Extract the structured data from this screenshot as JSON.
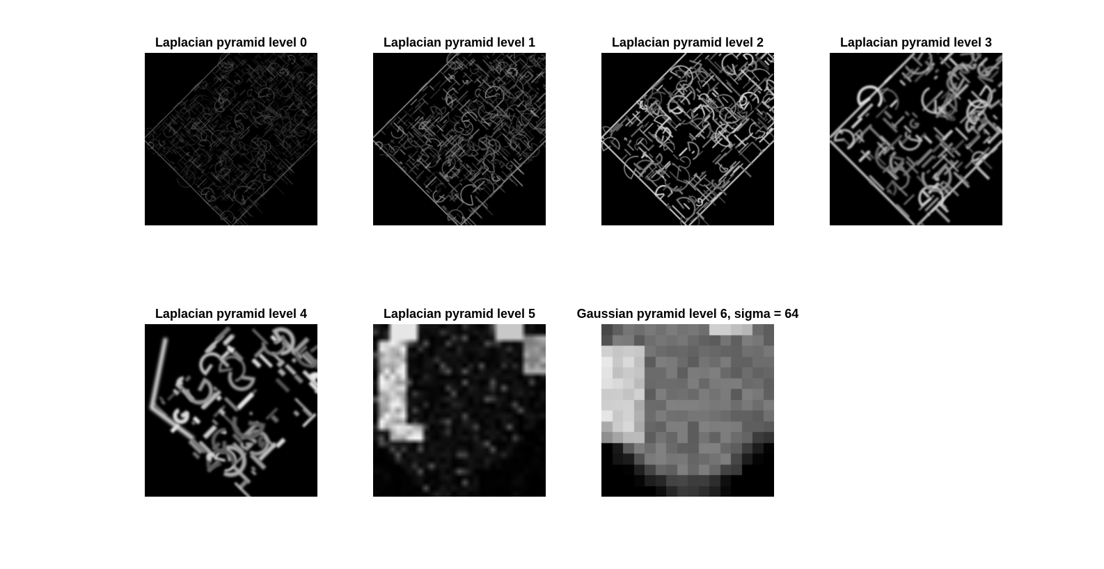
{
  "figure": {
    "background_color": "#ffffff",
    "image_background_color": "#000000",
    "panels": [
      {
        "title": "Laplacian pyramid level 0",
        "kind": "laplacian",
        "level": 0
      },
      {
        "title": "Laplacian pyramid level 1",
        "kind": "laplacian",
        "level": 1
      },
      {
        "title": "Laplacian pyramid level 2",
        "kind": "laplacian",
        "level": 2
      },
      {
        "title": "Laplacian pyramid level 3",
        "kind": "laplacian",
        "level": 3
      },
      {
        "title": "Laplacian pyramid level 4",
        "kind": "laplacian",
        "level": 4
      },
      {
        "title": "Laplacian pyramid level 5",
        "kind": "laplacian",
        "level": 5
      },
      {
        "title": "Gaussian pyramid level 6, sigma = 64",
        "kind": "gaussian",
        "level": 6
      }
    ]
  }
}
